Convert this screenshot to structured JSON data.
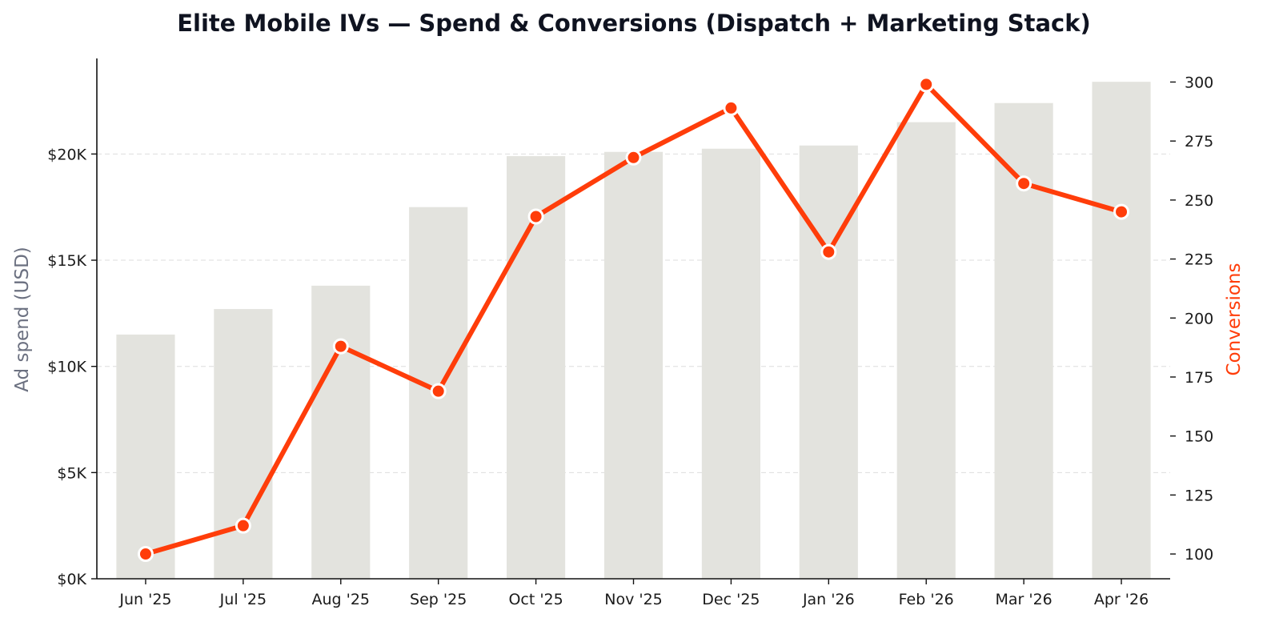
{
  "chart_data": {
    "type": "bar",
    "title": "Elite Mobile IVs — Spend & Conversions (Dispatch + Marketing Stack)",
    "xlabel": "",
    "categories": [
      "Jun '25",
      "Jul '25",
      "Aug '25",
      "Sep '25",
      "Oct '25",
      "Nov '25",
      "Dec '25",
      "Jan '26",
      "Feb '26",
      "Mar '26",
      "Apr '26"
    ],
    "series": [
      {
        "type": "bar",
        "axis": "left",
        "values": [
          11500,
          12700,
          13800,
          17500,
          19900,
          20100,
          20250,
          20400,
          21500,
          22400,
          23400
        ],
        "color": "#e3e3de"
      },
      {
        "type": "line",
        "axis": "right",
        "values": [
          100,
          112,
          188,
          169,
          243,
          268,
          289,
          228,
          299,
          257,
          245
        ],
        "color": "#ff3d0a"
      }
    ],
    "y_left": {
      "label": "Ad spend (USD)",
      "ylim": [
        0,
        24500
      ],
      "ticks": [
        0,
        5000,
        10000,
        15000,
        20000
      ],
      "tick_labels": [
        "$0K",
        "$5K",
        "$10K",
        "$15K",
        "$20K"
      ],
      "label_color": "#6b7080"
    },
    "y_right": {
      "label": "Conversions",
      "ylim": [
        89.5,
        310
      ],
      "ticks": [
        100,
        125,
        150,
        175,
        200,
        225,
        250,
        275,
        300
      ],
      "tick_labels": [
        "100",
        "125",
        "150",
        "175",
        "200",
        "225",
        "250",
        "275",
        "300"
      ],
      "label_color": "#ff3d0a"
    },
    "grid": true,
    "legend": "none"
  }
}
